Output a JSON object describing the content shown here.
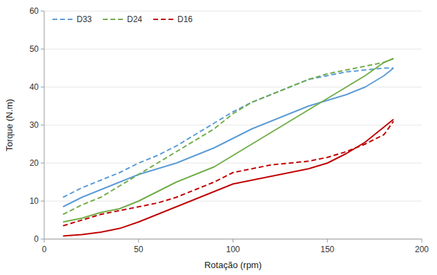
{
  "chart_data": {
    "type": "line",
    "xlabel": "Rotação (rpm)",
    "ylabel": "Torque (N.m)",
    "x": [
      10,
      20,
      30,
      40,
      50,
      60,
      70,
      80,
      90,
      100,
      110,
      120,
      130,
      140,
      150,
      160,
      170,
      180,
      185
    ],
    "series": [
      {
        "name": "D33",
        "color": "#5B9BD5",
        "line_style": "solid",
        "values": [
          8.5,
          11,
          13,
          15,
          17,
          18.5,
          20,
          22,
          24,
          26.5,
          29,
          31,
          33,
          35,
          36.5,
          38,
          40,
          43,
          45
        ]
      },
      {
        "name": "D33",
        "color": "#5B9BD5",
        "line_style": "dashed",
        "values": [
          11,
          13.5,
          15.5,
          17.5,
          20,
          22,
          24.5,
          27.5,
          30.5,
          33.5,
          36,
          38,
          40,
          42,
          43,
          44,
          44.5,
          45,
          45
        ]
      },
      {
        "name": "D24",
        "color": "#70AD47",
        "line_style": "solid",
        "values": [
          4.5,
          5.5,
          7,
          8,
          10,
          12.5,
          15,
          17,
          19,
          22,
          25,
          28,
          31,
          34,
          37,
          40,
          43,
          46.5,
          47.5
        ]
      },
      {
        "name": "D24",
        "color": "#70AD47",
        "line_style": "dashed",
        "values": [
          6.5,
          9,
          11,
          14,
          17,
          20,
          23,
          26,
          29,
          33,
          36,
          38,
          40,
          42,
          43.5,
          44.5,
          45.5,
          46.5,
          47.5
        ]
      },
      {
        "name": "D16",
        "color": "#C00000",
        "line_style": "solid",
        "values": [
          0.8,
          1.2,
          1.8,
          2.8,
          4.5,
          6.5,
          8.5,
          10.5,
          12.5,
          14.5,
          15.5,
          16.5,
          17.5,
          18.5,
          20,
          22.5,
          25.5,
          29.5,
          31.5
        ]
      },
      {
        "name": "D16",
        "color": "#C00000",
        "line_style": "dashed",
        "values": [
          3.5,
          5,
          6.5,
          7.5,
          8.5,
          9.5,
          11,
          13,
          15,
          17.5,
          18.5,
          19.5,
          20,
          20.5,
          21.5,
          23,
          25,
          27.5,
          31
        ]
      }
    ],
    "xlim": [
      0,
      200
    ],
    "ylim": [
      0,
      60
    ],
    "xticks": [
      0,
      50,
      100,
      150,
      200
    ],
    "yticks": [
      0,
      10,
      20,
      30,
      40,
      50,
      60
    ],
    "grid": true,
    "legend": "upper left"
  }
}
